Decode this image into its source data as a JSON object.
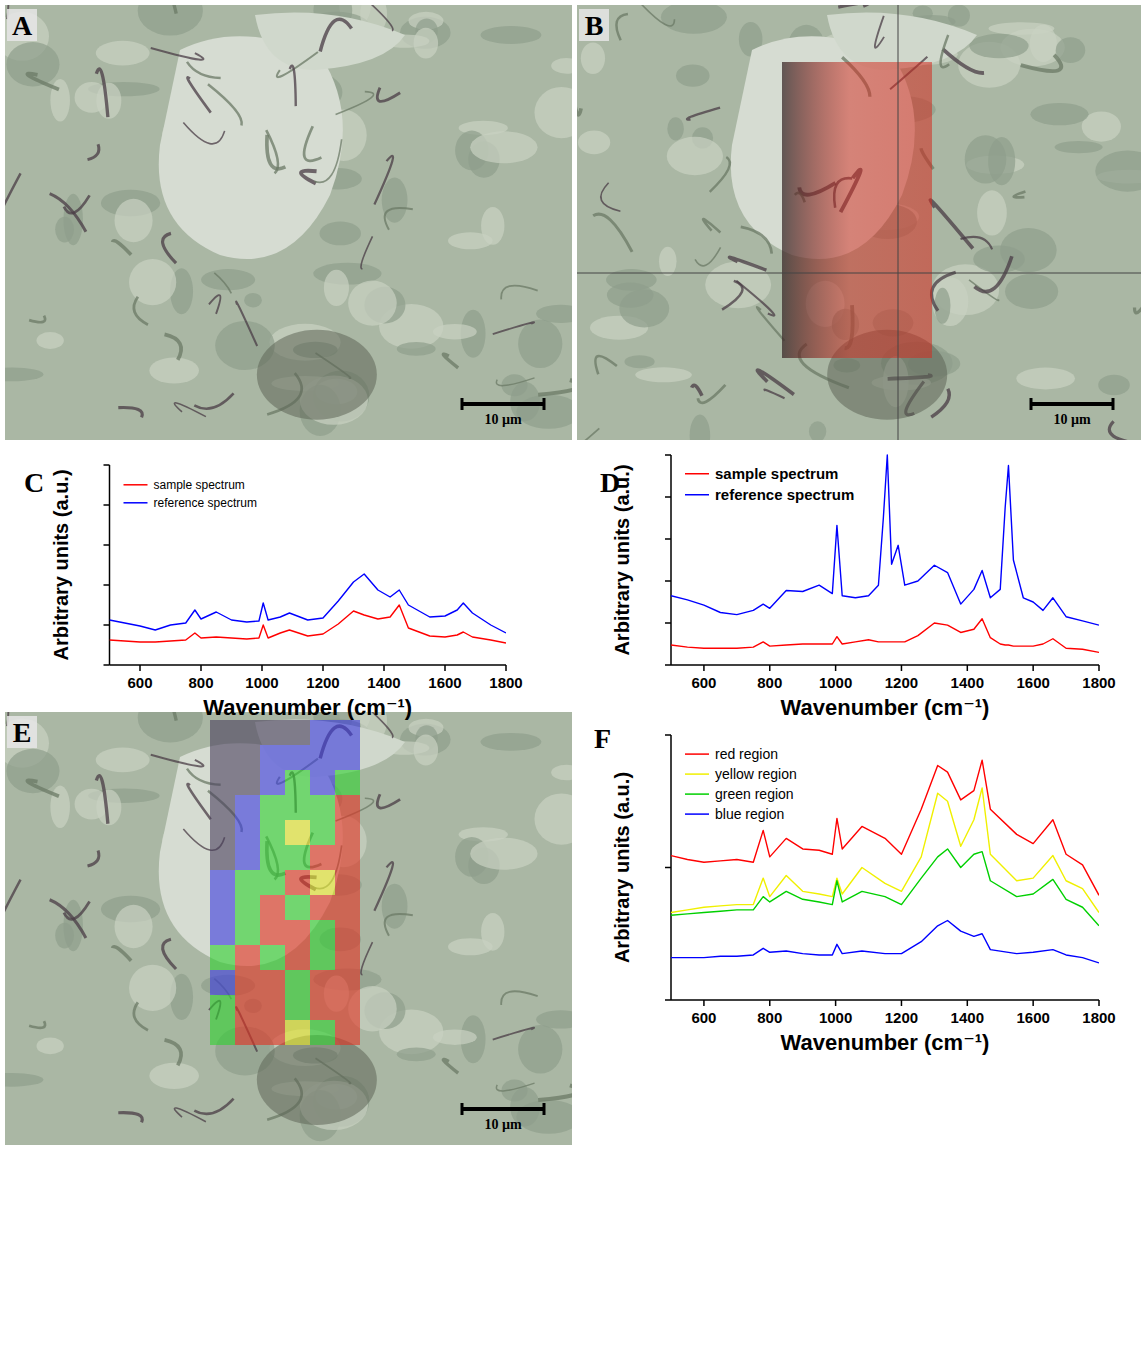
{
  "images": [
    {
      "panel": "A",
      "scale_bar": "10 µm"
    },
    {
      "panel": "B",
      "scale_bar": "10 µm",
      "overlay": "#d42a1e"
    },
    {
      "panel": "E",
      "scale_bar": "10 µm",
      "map": {
        "colors": [
          "#4a3f5e",
          "#3a3ae0",
          "#2ed22e",
          "#e8e82a",
          "#e23020"
        ],
        "cells": [
          [
            0,
            0,
            0,
            0,
            1,
            1
          ],
          [
            0,
            0,
            1,
            1,
            1,
            1
          ],
          [
            0,
            0,
            1,
            2,
            1,
            2
          ],
          [
            0,
            1,
            2,
            2,
            2,
            4
          ],
          [
            0,
            1,
            2,
            3,
            2,
            4
          ],
          [
            0,
            1,
            2,
            2,
            4,
            4
          ],
          [
            1,
            2,
            2,
            4,
            3,
            4
          ],
          [
            1,
            2,
            4,
            2,
            4,
            4
          ],
          [
            1,
            2,
            4,
            4,
            2,
            4
          ],
          [
            2,
            4,
            2,
            4,
            2,
            4
          ],
          [
            1,
            4,
            4,
            2,
            4,
            4
          ],
          [
            2,
            4,
            4,
            2,
            4,
            4
          ],
          [
            2,
            4,
            4,
            3,
            2,
            4
          ]
        ]
      }
    }
  ],
  "chart_data": [
    {
      "type": "line",
      "panel": "C",
      "xlabel": "Wavenumber (cm⁻¹)",
      "ylabel": "Arbitrary units (a.u.)",
      "xlim": [
        500,
        1800
      ],
      "xticks": [
        600,
        800,
        1000,
        1200,
        1400,
        1600,
        1800
      ],
      "ylim": [
        0,
        100
      ],
      "yticks": [
        0,
        20,
        40,
        60,
        80,
        100
      ],
      "tick_labels": "x",
      "legend": "upper left",
      "x": [
        500,
        550,
        600,
        650,
        700,
        750,
        780,
        800,
        850,
        900,
        950,
        990,
        1004,
        1020,
        1060,
        1090,
        1150,
        1200,
        1250,
        1300,
        1335,
        1380,
        1420,
        1450,
        1480,
        1550,
        1600,
        1640,
        1660,
        1690,
        1750,
        1800
      ],
      "series": [
        {
          "name": "sample spectrum",
          "color": "#ff0000",
          "values": [
            12.5,
            12,
            11.5,
            11.5,
            12,
            12.5,
            16,
            13.5,
            14,
            13.5,
            13,
            13.5,
            20,
            13.5,
            16,
            17.5,
            14.5,
            15.5,
            20.5,
            27,
            25,
            23,
            24,
            30,
            18.5,
            14.5,
            14,
            15,
            16.5,
            14,
            12.5,
            11
          ]
        },
        {
          "name": "reference spectrum",
          "color": "#0000ff",
          "values": [
            22.5,
            21,
            19.5,
            17.5,
            20,
            21,
            27.5,
            23,
            26.5,
            22.5,
            21.5,
            22,
            31,
            22.5,
            24,
            26,
            22.5,
            23.5,
            32,
            41.5,
            45.5,
            37.5,
            34,
            37.5,
            30,
            24,
            24.5,
            27.5,
            31,
            26,
            20,
            16
          ]
        }
      ]
    },
    {
      "type": "line",
      "panel": "D",
      "xlabel": "Wavenumber (cm⁻¹)",
      "ylabel": "Arbitrary units (a.u.)",
      "xlim": [
        500,
        1800
      ],
      "xticks": [
        600,
        800,
        1000,
        1200,
        1400,
        1600,
        1800
      ],
      "ylim": [
        0,
        100
      ],
      "yticks": [
        0,
        20,
        40,
        60,
        80,
        100
      ],
      "tick_labels": "x",
      "legend": "upper left",
      "x": [
        500,
        550,
        600,
        650,
        700,
        750,
        780,
        800,
        850,
        900,
        950,
        990,
        1004,
        1020,
        1060,
        1100,
        1130,
        1145,
        1157,
        1170,
        1190,
        1210,
        1250,
        1300,
        1340,
        1380,
        1420,
        1445,
        1470,
        1500,
        1515,
        1525,
        1540,
        1570,
        1600,
        1630,
        1660,
        1700,
        1750,
        1800
      ],
      "series": [
        {
          "name": "sample spectrum",
          "color": "#ff0000",
          "values": [
            9.5,
            8.5,
            8,
            8,
            8,
            8.5,
            11,
            9,
            9.5,
            10,
            10,
            10,
            13.5,
            10,
            11,
            12,
            11,
            11,
            11,
            11,
            11,
            11,
            14,
            20,
            19,
            15.5,
            17,
            22,
            13,
            10,
            9.5,
            9.5,
            9,
            9,
            9,
            10,
            12.5,
            8,
            7.5,
            6
          ]
        },
        {
          "name": "reference spectrum",
          "color": "#0000ff",
          "values": [
            33,
            31,
            28.5,
            25,
            24,
            26,
            29,
            27,
            35.5,
            35,
            38,
            34,
            66.5,
            33,
            32,
            33,
            38,
            70,
            100,
            48,
            57,
            38,
            40,
            47.5,
            44,
            29,
            36,
            45,
            32,
            36,
            75,
            95,
            50,
            32,
            30,
            26,
            32,
            23,
            21,
            19
          ]
        }
      ]
    },
    {
      "type": "line",
      "panel": "F",
      "xlabel": "Wavenumber (cm⁻¹)",
      "ylabel": "Arbitrary units (a.u.)",
      "xlim": [
        500,
        1800
      ],
      "xticks": [
        600,
        800,
        1000,
        1200,
        1400,
        1600,
        1800
      ],
      "ylim": [
        0,
        100
      ],
      "yticks": [
        0,
        50,
        100
      ],
      "tick_labels": "x",
      "legend": "upper left",
      "x": [
        500,
        550,
        600,
        650,
        700,
        750,
        780,
        800,
        850,
        900,
        950,
        990,
        1004,
        1020,
        1080,
        1150,
        1200,
        1260,
        1310,
        1340,
        1380,
        1420,
        1445,
        1470,
        1550,
        1600,
        1660,
        1700,
        1750,
        1800
      ],
      "series": [
        {
          "name": "red region",
          "color": "#ff0000",
          "values": [
            54.5,
            53,
            52,
            52.5,
            53,
            52,
            64,
            54,
            61,
            57,
            56.5,
            55,
            68.5,
            57,
            65.5,
            61,
            55,
            72,
            88.5,
            86,
            75.5,
            79,
            90.5,
            72,
            62.5,
            59,
            68,
            55,
            51,
            39.5
          ]
        },
        {
          "name": "yellow region",
          "color": "#f0f000",
          "values": [
            33,
            34,
            35,
            35.5,
            36,
            36,
            46,
            39,
            47,
            41,
            40,
            39,
            46,
            40,
            50,
            44,
            41,
            54,
            78,
            75,
            58,
            68,
            80,
            55,
            45,
            46,
            54.5,
            45,
            42,
            33
          ]
        },
        {
          "name": "green region",
          "color": "#00d000",
          "values": [
            32,
            32.5,
            33,
            33.5,
            34,
            34,
            39,
            37,
            41,
            38,
            37,
            36,
            45,
            37,
            41,
            39,
            36,
            46,
            54,
            57,
            50,
            55,
            56,
            45,
            39,
            40,
            45.5,
            38,
            35,
            28
          ]
        },
        {
          "name": "blue region",
          "color": "#0000ff",
          "values": [
            16,
            16,
            16,
            16.5,
            16.5,
            17,
            19.5,
            18,
            18.5,
            17.5,
            17,
            17,
            21,
            17.5,
            18.5,
            17.5,
            17.5,
            22,
            28,
            30,
            26,
            24,
            25,
            19,
            17.5,
            18,
            19,
            17,
            16,
            14
          ]
        }
      ]
    }
  ]
}
